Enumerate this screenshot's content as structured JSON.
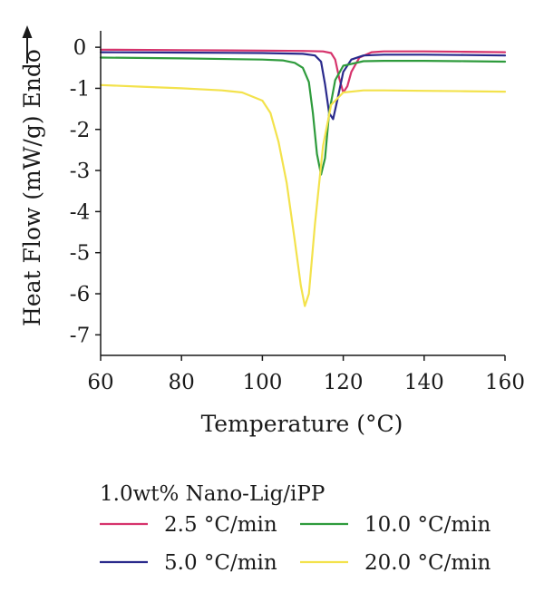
{
  "chart_data": {
    "type": "line",
    "xlabel": "Temperature (°C)",
    "ylabel": "Heat Flow (mW/g) Endo",
    "xlim": [
      60,
      160
    ],
    "ylim": [
      -7.5,
      0.4
    ],
    "xticks": [
      60,
      80,
      100,
      120,
      140,
      160
    ],
    "yticks": [
      0,
      -1,
      -2,
      -3,
      -4,
      -5,
      -6,
      -7
    ],
    "legend_title": "1.0wt% Nano-Lig/iPP",
    "legend_placement": "bottom",
    "grid": false,
    "series": [
      {
        "name": "2.5 °C/min",
        "color": "#d6336c",
        "x": [
          60,
          80,
          100,
          110,
          115,
          117,
          118,
          119,
          120,
          121,
          122,
          124,
          127,
          130,
          140,
          150,
          160
        ],
        "y": [
          -0.06,
          -0.07,
          -0.08,
          -0.09,
          -0.1,
          -0.14,
          -0.3,
          -0.75,
          -1.1,
          -0.95,
          -0.6,
          -0.25,
          -0.12,
          -0.1,
          -0.1,
          -0.11,
          -0.12
        ]
      },
      {
        "name": "5.0 °C/min",
        "color": "#2a2a8c",
        "x": [
          60,
          80,
          100,
          110,
          113,
          114.5,
          115.5,
          116.5,
          117.5,
          118.5,
          120,
          122,
          125,
          130,
          140,
          150,
          160
        ],
        "y": [
          -0.12,
          -0.13,
          -0.14,
          -0.16,
          -0.2,
          -0.35,
          -0.9,
          -1.6,
          -1.75,
          -1.3,
          -0.6,
          -0.3,
          -0.2,
          -0.18,
          -0.18,
          -0.19,
          -0.2
        ]
      },
      {
        "name": "10.0 °C/min",
        "color": "#2e9b3c",
        "x": [
          60,
          80,
          100,
          105,
          108,
          110,
          111.5,
          112.5,
          113.5,
          114.5,
          115.5,
          116.5,
          118,
          120,
          125,
          130,
          140,
          150,
          160
        ],
        "y": [
          -0.25,
          -0.27,
          -0.3,
          -0.32,
          -0.38,
          -0.5,
          -0.85,
          -1.6,
          -2.6,
          -3.1,
          -2.7,
          -1.6,
          -0.8,
          -0.45,
          -0.34,
          -0.33,
          -0.33,
          -0.34,
          -0.35
        ]
      },
      {
        "name": "20.0 °C/min",
        "color": "#f3e24c",
        "x": [
          60,
          70,
          80,
          90,
          95,
          100,
          102,
          104,
          106,
          108,
          109.5,
          110.5,
          111.5,
          113,
          115,
          117,
          120,
          125,
          130,
          140,
          150,
          160
        ],
        "y": [
          -0.92,
          -0.96,
          -1.0,
          -1.05,
          -1.1,
          -1.3,
          -1.6,
          -2.3,
          -3.3,
          -4.7,
          -5.8,
          -6.3,
          -6.0,
          -4.3,
          -2.4,
          -1.4,
          -1.1,
          -1.05,
          -1.05,
          -1.06,
          -1.07,
          -1.08
        ]
      }
    ]
  }
}
